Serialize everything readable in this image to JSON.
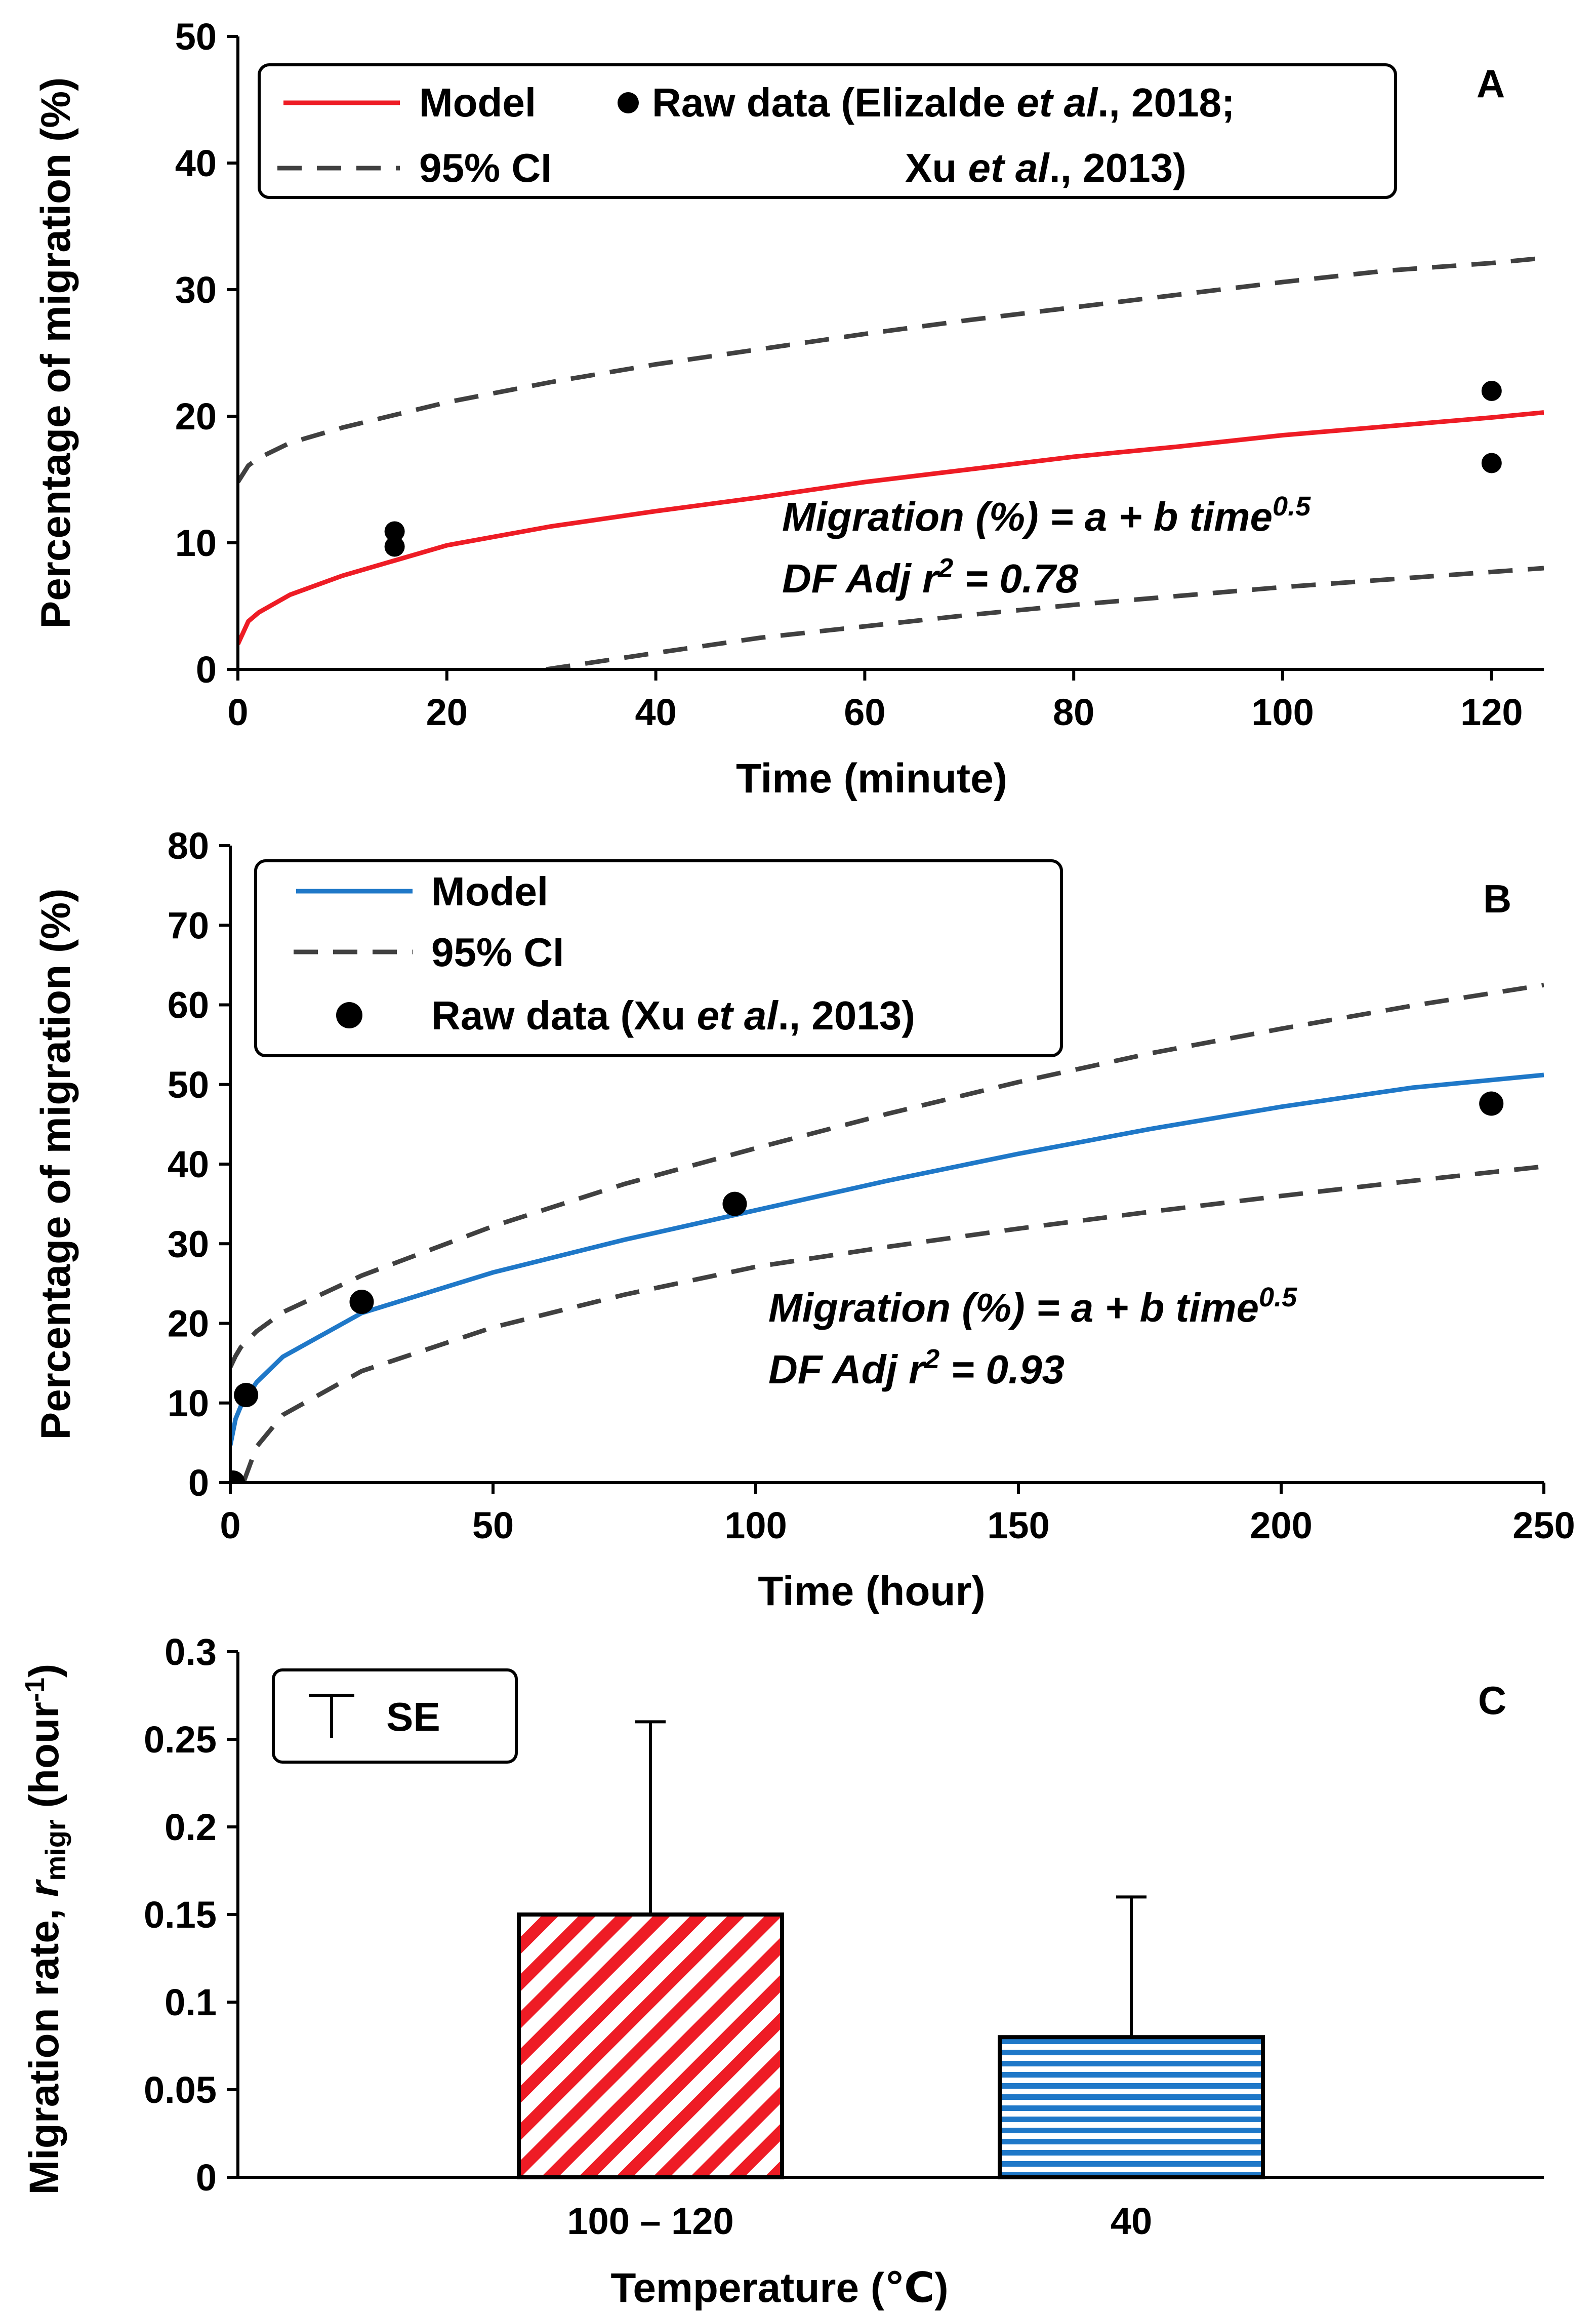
{
  "chart_data": [
    {
      "panel": "A",
      "type": "scatter",
      "xlabel": "Time (minute)",
      "ylabel": "Percentage of migration (%)",
      "xlim": [
        0,
        125
      ],
      "ylim": [
        0,
        50
      ],
      "xticks": [
        0,
        20,
        40,
        60,
        80,
        100,
        120
      ],
      "yticks": [
        0,
        10,
        20,
        30,
        40,
        50
      ],
      "legend": {
        "model": "Model",
        "ci": "95% CI",
        "raw_line1": "Raw data (Elizalde ",
        "raw_italic1": "et al",
        "raw_after1": "., 2018;",
        "raw_line2": "Xu ",
        "raw_italic2": "et al",
        "raw_after2": "., 2013)"
      },
      "equation": "Migration (%) = a + b time",
      "equation_exp": "0.5",
      "r2_prefix": "DF Adj r",
      "r2_exp": "2",
      "r2_suffix": " = 0.78",
      "raw_points": [
        {
          "x": 15,
          "y": 10.9
        },
        {
          "x": 15,
          "y": 9.7
        },
        {
          "x": 120,
          "y": 22
        },
        {
          "x": 120,
          "y": 16.3
        }
      ],
      "model": {
        "x": [
          0,
          1,
          2,
          5,
          10,
          15,
          20,
          30,
          40,
          50,
          60,
          70,
          80,
          90,
          100,
          110,
          120,
          125
        ],
        "y": [
          2.0,
          3.8,
          4.5,
          5.9,
          7.4,
          8.6,
          9.8,
          11.3,
          12.5,
          13.6,
          14.8,
          15.8,
          16.8,
          17.6,
          18.5,
          19.2,
          19.9,
          20.3
        ]
      },
      "ci_upper": {
        "x": [
          0,
          1,
          2,
          5,
          10,
          15,
          20,
          30,
          40,
          50,
          60,
          70,
          80,
          90,
          100,
          110,
          120,
          125
        ],
        "y": [
          14.8,
          16.1,
          16.7,
          17.9,
          19.1,
          20.1,
          21.1,
          22.7,
          24.1,
          25.3,
          26.5,
          27.6,
          28.6,
          29.6,
          30.6,
          31.5,
          32.1,
          32.5
        ]
      },
      "ci_lower": {
        "x": [
          29.5,
          40,
          50,
          60,
          70,
          80,
          90,
          100,
          110,
          120,
          125
        ],
        "y": [
          0,
          1.3,
          2.5,
          3.4,
          4.3,
          5.1,
          5.8,
          6.5,
          7.1,
          7.7,
          8.0
        ]
      },
      "colors": {
        "model": "#ee1c25",
        "ci": "#404040",
        "raw": "#000000"
      }
    },
    {
      "panel": "B",
      "type": "scatter",
      "xlabel": "Time (hour)",
      "ylabel": "Percentage of migration (%)",
      "xlim": [
        0,
        250
      ],
      "ylim": [
        0,
        80
      ],
      "xticks": [
        0,
        50,
        100,
        150,
        200,
        250
      ],
      "yticks": [
        0,
        10,
        20,
        30,
        40,
        50,
        60,
        70,
        80
      ],
      "legend": {
        "model": "Model",
        "ci": "95% CI",
        "raw_prefix": "Raw data (Xu ",
        "raw_italic": "et al",
        "raw_suffix": "., 2013)"
      },
      "equation": "Migration (%) = a + b time",
      "equation_exp": "0.5",
      "r2_prefix": "DF Adj r",
      "r2_exp": "2",
      "r2_suffix": " = 0.93",
      "raw_points": [
        {
          "x": 0.5,
          "y": 0
        },
        {
          "x": 3,
          "y": 11
        },
        {
          "x": 25,
          "y": 22.7
        },
        {
          "x": 96,
          "y": 35
        },
        {
          "x": 240,
          "y": 47.6
        }
      ],
      "model": {
        "x": [
          0,
          1,
          2,
          5,
          10,
          25,
          50,
          75,
          100,
          125,
          150,
          175,
          200,
          225,
          250
        ],
        "y": [
          4.7,
          8.0,
          9.6,
          12.6,
          15.8,
          21.3,
          26.4,
          30.5,
          34.2,
          37.9,
          41.3,
          44.4,
          47.2,
          49.6,
          51.2
        ]
      },
      "ci_upper": {
        "x": [
          0,
          1,
          2,
          5,
          10,
          25,
          50,
          75,
          100,
          125,
          150,
          175,
          200,
          225,
          250
        ],
        "y": [
          14.5,
          15.9,
          17.0,
          19.0,
          21.4,
          26.0,
          32.2,
          37.5,
          42.0,
          46.3,
          50.3,
          53.9,
          57.0,
          59.9,
          62.5
        ]
      },
      "ci_lower": {
        "x": [
          2.5,
          5,
          10,
          25,
          50,
          75,
          100,
          125,
          150,
          175,
          200,
          225,
          250
        ],
        "y": [
          0,
          4.5,
          8.5,
          14.0,
          19.5,
          23.6,
          27.1,
          29.6,
          31.9,
          34.0,
          36.0,
          37.9,
          39.7
        ]
      },
      "colors": {
        "model": "#1f78c8",
        "ci": "#404040",
        "raw": "#000000"
      }
    },
    {
      "panel": "C",
      "type": "bar",
      "xlabel": "Temperature (℃)",
      "ylabel_prefix": "Migration rate, ",
      "ylabel_italic": "r",
      "ylabel_sub": "migr",
      "ylabel_unit": " (hour",
      "ylabel_sup": "-1",
      "ylabel_close": ")",
      "ylim": [
        0,
        0.3
      ],
      "yticks": [
        "0",
        "0.05",
        "0.1",
        "0.15",
        "0.2",
        "0.25",
        "0.3"
      ],
      "categories": [
        "100 – 120",
        "40"
      ],
      "values": [
        0.15,
        0.08
      ],
      "errors": [
        0.11,
        0.08
      ],
      "legend": {
        "se": "SE"
      },
      "colors": {
        "bar1": "#ee1c25",
        "bar2": "#1f78c8"
      }
    }
  ]
}
